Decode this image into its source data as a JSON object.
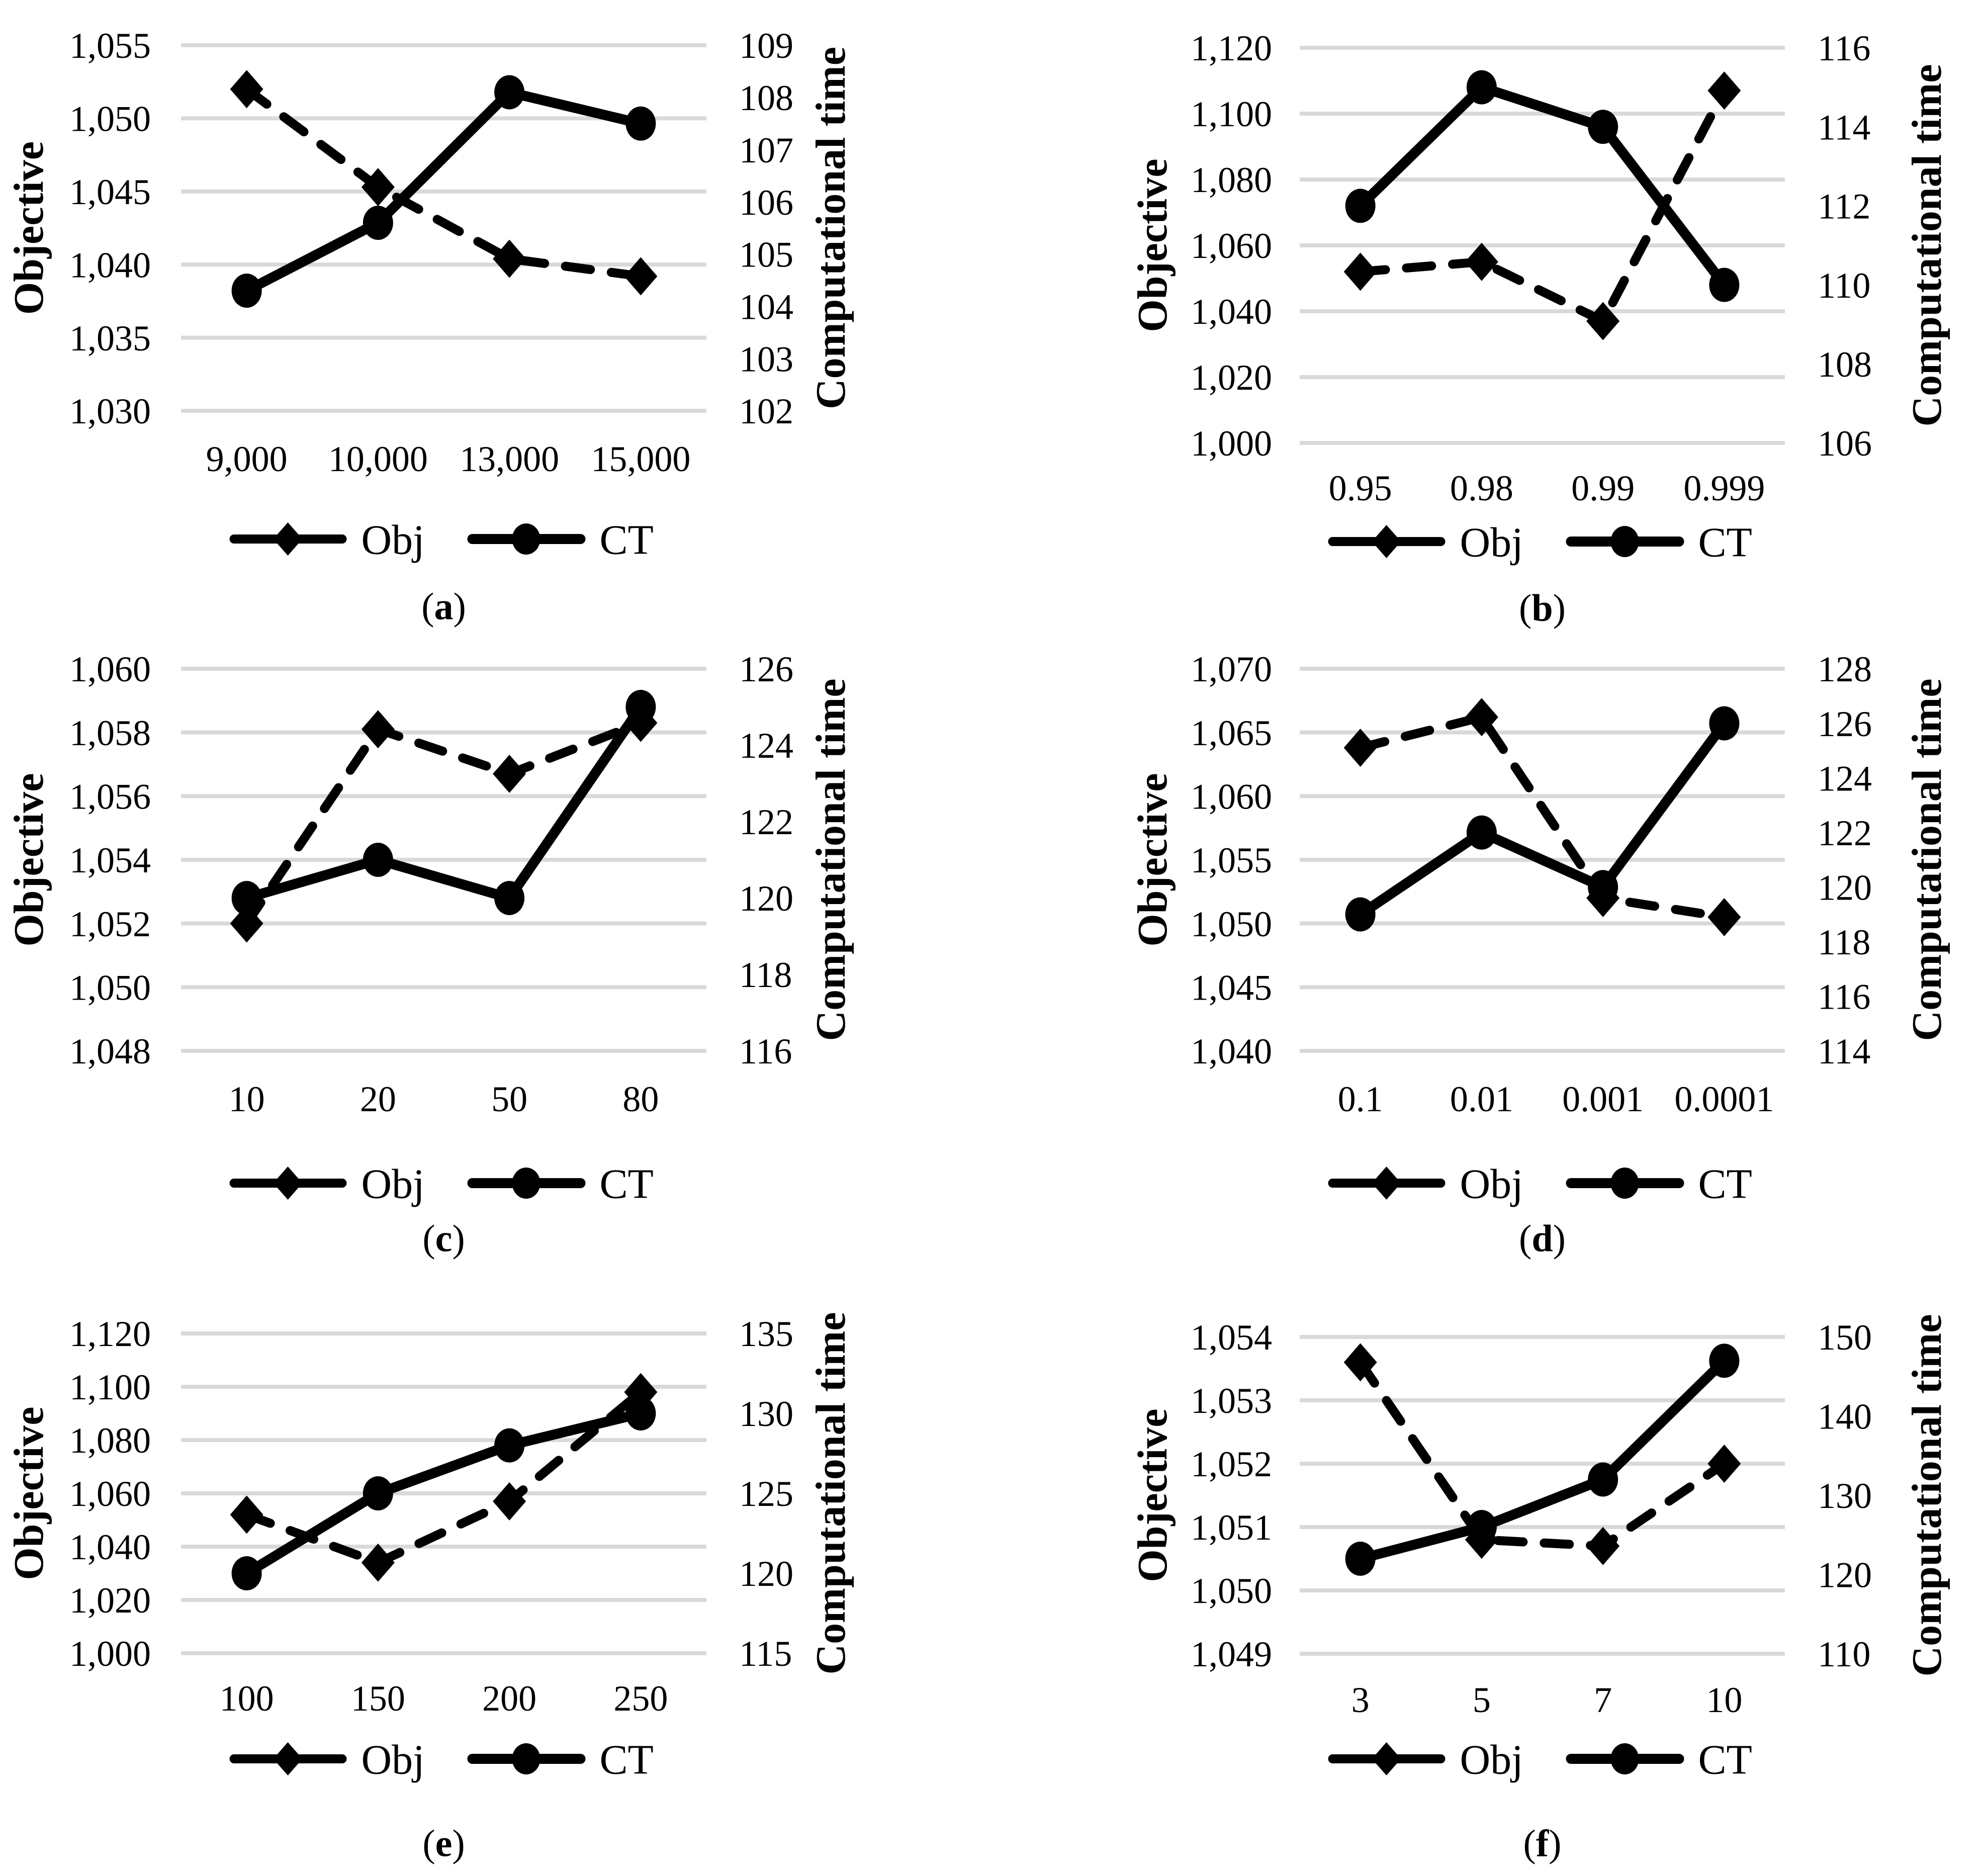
{
  "figure": {
    "background": "#ffffff",
    "text_color": "#000000",
    "gridline_color": "#d9d9d9",
    "series_color": "#000000",
    "legend_labels": [
      "Obj",
      "CT"
    ],
    "left_axis_title": "Objective",
    "right_axis_title": "Computational time"
  },
  "chart_data": [
    {
      "panel": "a",
      "caption": "(a)",
      "type": "line",
      "legend_position": "bottom",
      "grid": true,
      "categories": [
        "9,000",
        "10,000",
        "13,000",
        "15,000"
      ],
      "left_axis": {
        "title": "Objective",
        "min": 1030,
        "max": 1055,
        "step": 5,
        "tick_labels": [
          "1,030",
          "1,035",
          "1,040",
          "1,045",
          "1,050",
          "1,055"
        ]
      },
      "right_axis": {
        "title": "Computational time",
        "min": 102,
        "max": 109,
        "step": 1,
        "tick_labels": [
          "102",
          "103",
          "104",
          "105",
          "106",
          "107",
          "108",
          "109"
        ]
      },
      "series": [
        {
          "name": "Obj",
          "axis": "left",
          "style": "dashed-diamond",
          "values": [
            1052,
            1045.3,
            1040.4,
            1039.2
          ]
        },
        {
          "name": "CT",
          "axis": "right",
          "style": "solid-circle",
          "values": [
            104.3,
            105.6,
            108.1,
            107.5
          ]
        }
      ]
    },
    {
      "panel": "b",
      "caption": "(b)",
      "type": "line",
      "legend_position": "bottom",
      "grid": true,
      "categories": [
        "0.95",
        "0.98",
        "0.99",
        "0.999"
      ],
      "left_axis": {
        "title": "Objective",
        "min": 1000,
        "max": 1120,
        "step": 20,
        "tick_labels": [
          "1,000",
          "1,020",
          "1,040",
          "1,060",
          "1,080",
          "1,100",
          "1,120"
        ]
      },
      "right_axis": {
        "title": "Computational time",
        "min": 106,
        "max": 116,
        "step": 2,
        "tick_labels": [
          "106",
          "108",
          "110",
          "112",
          "114",
          "116"
        ]
      },
      "series": [
        {
          "name": "Obj",
          "axis": "left",
          "style": "dashed-diamond",
          "values": [
            1052,
            1055,
            1037,
            1107
          ]
        },
        {
          "name": "CT",
          "axis": "right",
          "style": "solid-circle",
          "values": [
            112,
            115,
            114,
            110
          ]
        }
      ]
    },
    {
      "panel": "c",
      "caption": "(c)",
      "type": "line",
      "legend_position": "bottom",
      "grid": true,
      "categories": [
        "10",
        "20",
        "50",
        "80"
      ],
      "left_axis": {
        "title": "Objective",
        "min": 1048,
        "max": 1060,
        "step": 2,
        "tick_labels": [
          "1,048",
          "1,050",
          "1,052",
          "1,054",
          "1,056",
          "1,058",
          "1,060"
        ]
      },
      "right_axis": {
        "title": "Computational time",
        "min": 116,
        "max": 126,
        "step": 2,
        "tick_labels": [
          "116",
          "118",
          "120",
          "122",
          "124",
          "126"
        ]
      },
      "series": [
        {
          "name": "Obj",
          "axis": "left",
          "style": "dashed-diamond",
          "values": [
            1052,
            1058.1,
            1056.7,
            1058.3
          ]
        },
        {
          "name": "CT",
          "axis": "right",
          "style": "solid-circle",
          "values": [
            120,
            121,
            120,
            125
          ]
        }
      ]
    },
    {
      "panel": "d",
      "caption": "(d)",
      "type": "line",
      "legend_position": "bottom",
      "grid": true,
      "categories": [
        "0.1",
        "0.01",
        "0.001",
        "0.0001"
      ],
      "left_axis": {
        "title": "Objective",
        "min": 1040,
        "max": 1070,
        "step": 5,
        "tick_labels": [
          "1,040",
          "1,045",
          "1,050",
          "1,055",
          "1,060",
          "1,065",
          "1,070"
        ]
      },
      "right_axis": {
        "title": "Computational time",
        "min": 114,
        "max": 128,
        "step": 2,
        "tick_labels": [
          "114",
          "116",
          "118",
          "120",
          "122",
          "124",
          "126",
          "128"
        ]
      },
      "series": [
        {
          "name": "Obj",
          "axis": "left",
          "style": "dashed-diamond",
          "values": [
            1063.8,
            1066.2,
            1052,
            1050.5
          ]
        },
        {
          "name": "CT",
          "axis": "right",
          "style": "solid-circle",
          "values": [
            119,
            122,
            120,
            126
          ]
        }
      ]
    },
    {
      "panel": "e",
      "caption": "(e)",
      "type": "line",
      "legend_position": "bottom",
      "grid": true,
      "categories": [
        "100",
        "150",
        "200",
        "250"
      ],
      "left_axis": {
        "title": "Objective",
        "min": 1000,
        "max": 1120,
        "step": 20,
        "tick_labels": [
          "1,000",
          "1,020",
          "1,040",
          "1,060",
          "1,080",
          "1,100",
          "1,120"
        ]
      },
      "right_axis": {
        "title": "Computational time",
        "min": 115,
        "max": 135,
        "step": 5,
        "tick_labels": [
          "115",
          "120",
          "125",
          "130",
          "135"
        ]
      },
      "series": [
        {
          "name": "Obj",
          "axis": "left",
          "style": "dashed-diamond",
          "values": [
            1052,
            1034,
            1057,
            1098
          ]
        },
        {
          "name": "CT",
          "axis": "right",
          "style": "solid-circle",
          "values": [
            120,
            125,
            128,
            130
          ]
        }
      ]
    },
    {
      "panel": "f",
      "caption": "(f)",
      "type": "line",
      "legend_position": "bottom",
      "grid": true,
      "categories": [
        "3",
        "5",
        "7",
        "10"
      ],
      "left_axis": {
        "title": "Objective",
        "min": 1049,
        "max": 1054,
        "step": 1,
        "tick_labels": [
          "1,049",
          "1,050",
          "1,051",
          "1,052",
          "1,053",
          "1,054"
        ]
      },
      "right_axis": {
        "title": "Computational time",
        "min": 110,
        "max": 150,
        "step": 10,
        "tick_labels": [
          "110",
          "120",
          "130",
          "140",
          "150"
        ]
      },
      "series": [
        {
          "name": "Obj",
          "axis": "left",
          "style": "dashed-diamond",
          "values": [
            1053.6,
            1050.8,
            1050.7,
            1052
          ]
        },
        {
          "name": "CT",
          "axis": "right",
          "style": "solid-circle",
          "values": [
            122,
            126,
            132,
            147
          ]
        }
      ]
    }
  ]
}
